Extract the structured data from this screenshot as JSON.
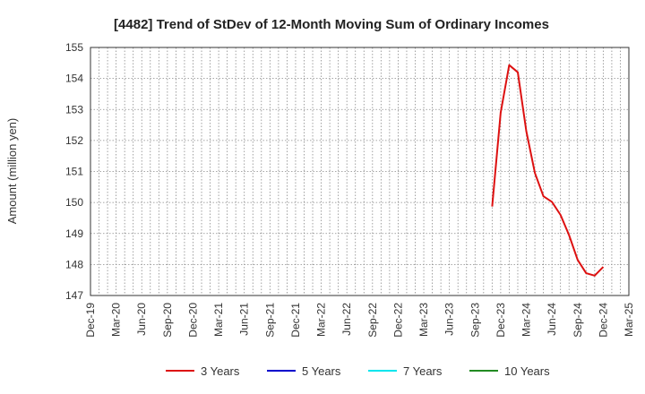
{
  "chart_data": {
    "type": "line",
    "title": "[4482]  Trend of StDev of 12-Month Moving Sum of Ordinary Incomes",
    "ylabel": "Amount (million yen)",
    "xlabel": "",
    "ylim": [
      147,
      155
    ],
    "yticks": [
      147,
      148,
      149,
      150,
      151,
      152,
      153,
      154,
      155
    ],
    "xticks": [
      "Dec-19",
      "Mar-20",
      "Jun-20",
      "Sep-20",
      "Dec-20",
      "Mar-21",
      "Jun-21",
      "Sep-21",
      "Dec-21",
      "Mar-22",
      "Jun-22",
      "Sep-22",
      "Dec-22",
      "Mar-23",
      "Jun-23",
      "Sep-23",
      "Dec-23",
      "Mar-24",
      "Jun-24",
      "Sep-24",
      "Dec-24",
      "Mar-25"
    ],
    "x_start": "2019-12",
    "x_end": "2025-03",
    "grid": true,
    "legend_position": "bottom",
    "series": [
      {
        "name": "3 Years",
        "color": "#dd1111",
        "points": [
          [
            "2023-11",
            149.87
          ],
          [
            "2023-12",
            152.9
          ],
          [
            "2024-01",
            154.43
          ],
          [
            "2024-02",
            154.2
          ],
          [
            "2024-03",
            152.3
          ],
          [
            "2024-04",
            150.95
          ],
          [
            "2024-05",
            150.2
          ],
          [
            "2024-06",
            150.02
          ],
          [
            "2024-07",
            149.6
          ],
          [
            "2024-08",
            148.95
          ],
          [
            "2024-09",
            148.15
          ],
          [
            "2024-10",
            147.72
          ],
          [
            "2024-11",
            147.64
          ],
          [
            "2024-12",
            147.92
          ]
        ]
      },
      {
        "name": "5 Years",
        "color": "#0000cc",
        "points": []
      },
      {
        "name": "7 Years",
        "color": "#00e5ee",
        "points": []
      },
      {
        "name": "10 Years",
        "color": "#228b22",
        "points": []
      }
    ]
  }
}
